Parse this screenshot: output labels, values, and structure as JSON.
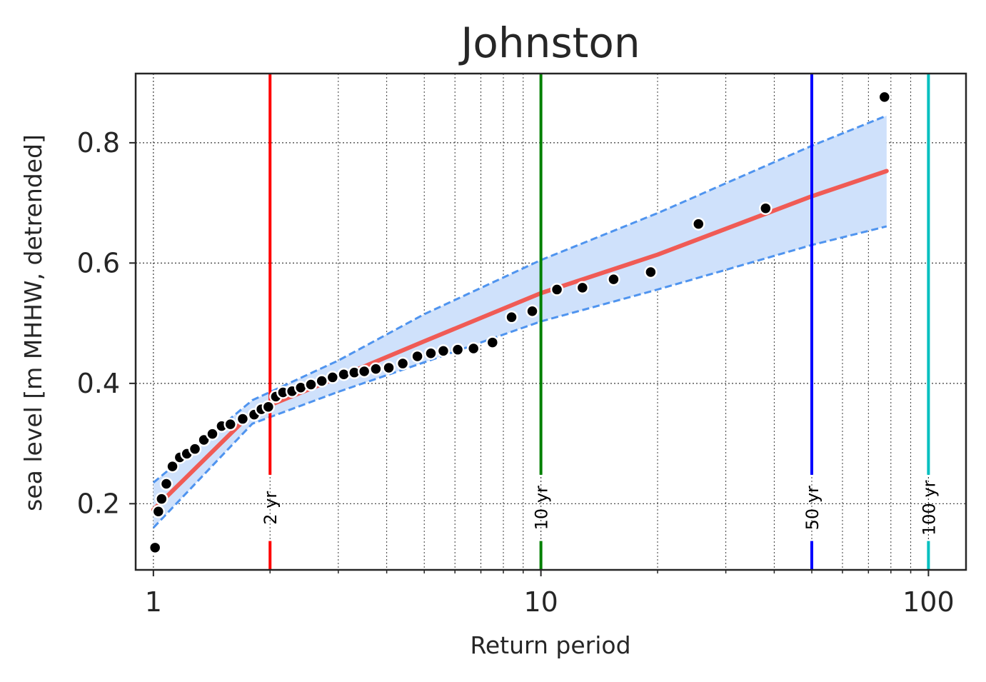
{
  "chart_data": {
    "type": "scatter",
    "title": "Johnston",
    "xlabel": "Return period",
    "ylabel": "sea level [m MHHW, detrended]",
    "x_scale": "log",
    "xlim": [
      0.9,
      125
    ],
    "ylim": [
      0.09,
      0.915
    ],
    "x_ticks": [
      {
        "value": 1,
        "label": "1"
      },
      {
        "value": 10,
        "label": "10"
      },
      {
        "value": 100,
        "label": "100"
      }
    ],
    "y_ticks": [
      {
        "value": 0.2,
        "label": "0.2"
      },
      {
        "value": 0.4,
        "label": "0.4"
      },
      {
        "value": 0.6,
        "label": "0.6"
      },
      {
        "value": 0.8,
        "label": "0.8"
      }
    ],
    "grid": true,
    "colors": {
      "points": "#000000",
      "fit": "#f05b55",
      "ci_line": "#4f94ef",
      "ci_fill": "#cfe1fb"
    },
    "observations": {
      "x": [
        1.01,
        1.03,
        1.05,
        1.08,
        1.12,
        1.17,
        1.22,
        1.28,
        1.35,
        1.42,
        1.5,
        1.58,
        1.7,
        1.82,
        1.9,
        1.98,
        2.07,
        2.16,
        2.28,
        2.4,
        2.55,
        2.72,
        2.9,
        3.1,
        3.3,
        3.5,
        3.75,
        4.05,
        4.4,
        4.8,
        5.2,
        5.6,
        6.1,
        6.7,
        7.5,
        8.4,
        9.5,
        11.0,
        12.8,
        15.4,
        19.2,
        25.5,
        38.0,
        77.0
      ],
      "y": [
        0.127,
        0.187,
        0.208,
        0.233,
        0.262,
        0.277,
        0.283,
        0.291,
        0.306,
        0.316,
        0.329,
        0.332,
        0.341,
        0.348,
        0.357,
        0.361,
        0.378,
        0.385,
        0.387,
        0.393,
        0.398,
        0.404,
        0.41,
        0.415,
        0.418,
        0.42,
        0.424,
        0.426,
        0.433,
        0.445,
        0.45,
        0.454,
        0.456,
        0.458,
        0.468,
        0.51,
        0.52,
        0.556,
        0.559,
        0.573,
        0.585,
        0.665,
        0.691,
        0.876
      ]
    },
    "fit": {
      "x": [
        1.0,
        1.8,
        3.0,
        5.0,
        10.0,
        20.0,
        50.0,
        78.0
      ],
      "y": [
        0.19,
        0.352,
        0.41,
        0.47,
        0.55,
        0.614,
        0.711,
        0.753
      ]
    },
    "ci_upper": {
      "x": [
        1.0,
        1.8,
        3.0,
        5.0,
        10.0,
        20.0,
        50.0,
        78.0
      ],
      "y": [
        0.235,
        0.372,
        0.438,
        0.515,
        0.605,
        0.683,
        0.795,
        0.845
      ]
    },
    "ci_lower": {
      "x": [
        1.0,
        1.8,
        3.0,
        5.0,
        10.0,
        20.0,
        50.0,
        78.0
      ],
      "y": [
        0.16,
        0.333,
        0.386,
        0.435,
        0.503,
        0.556,
        0.63,
        0.661
      ]
    },
    "return_periods": [
      {
        "value": 2,
        "label": "2 yr",
        "color": "#ff0000"
      },
      {
        "value": 10,
        "label": "10 yr",
        "color": "#008000"
      },
      {
        "value": 50,
        "label": "50 yr",
        "color": "#0000ff"
      },
      {
        "value": 100,
        "label": "100 yr",
        "color": "#00bfbf"
      }
    ]
  }
}
